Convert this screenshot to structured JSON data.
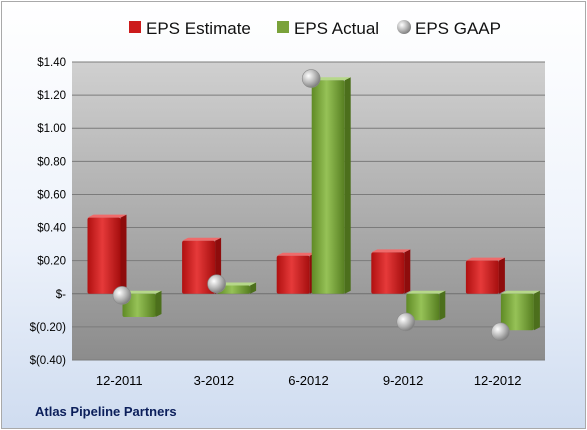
{
  "chart_data": {
    "type": "bar",
    "categories": [
      "12-2011",
      "3-2012",
      "6-2012",
      "9-2012",
      "12-2012"
    ],
    "series": [
      {
        "name": "EPS Estimate",
        "kind": "bar",
        "color": "#cc1b1b",
        "values": [
          0.46,
          0.32,
          0.23,
          0.25,
          0.2
        ]
      },
      {
        "name": "EPS Actual",
        "kind": "bar",
        "color": "#7aa23a",
        "values": [
          -0.14,
          0.05,
          1.29,
          -0.16,
          -0.22
        ]
      },
      {
        "name": "EPS GAAP",
        "kind": "marker",
        "color": "#a8a8a8",
        "values": [
          -0.01,
          0.06,
          1.3,
          -0.17,
          -0.23
        ]
      }
    ],
    "yticks": [
      1.4,
      1.2,
      1.0,
      0.8,
      0.6,
      0.4,
      0.2,
      0,
      -0.2,
      -0.4
    ],
    "ytick_labels": [
      "$1.40",
      "$1.20",
      "$1.00",
      "$0.80",
      "$0.60",
      "$0.40",
      "$0.20",
      "$-",
      "$(0.20)",
      "$(0.40)"
    ],
    "ylim": [
      -0.4,
      1.4
    ],
    "grid": true,
    "legend_position": "top",
    "footer": "Atlas Pipeline Partners"
  }
}
